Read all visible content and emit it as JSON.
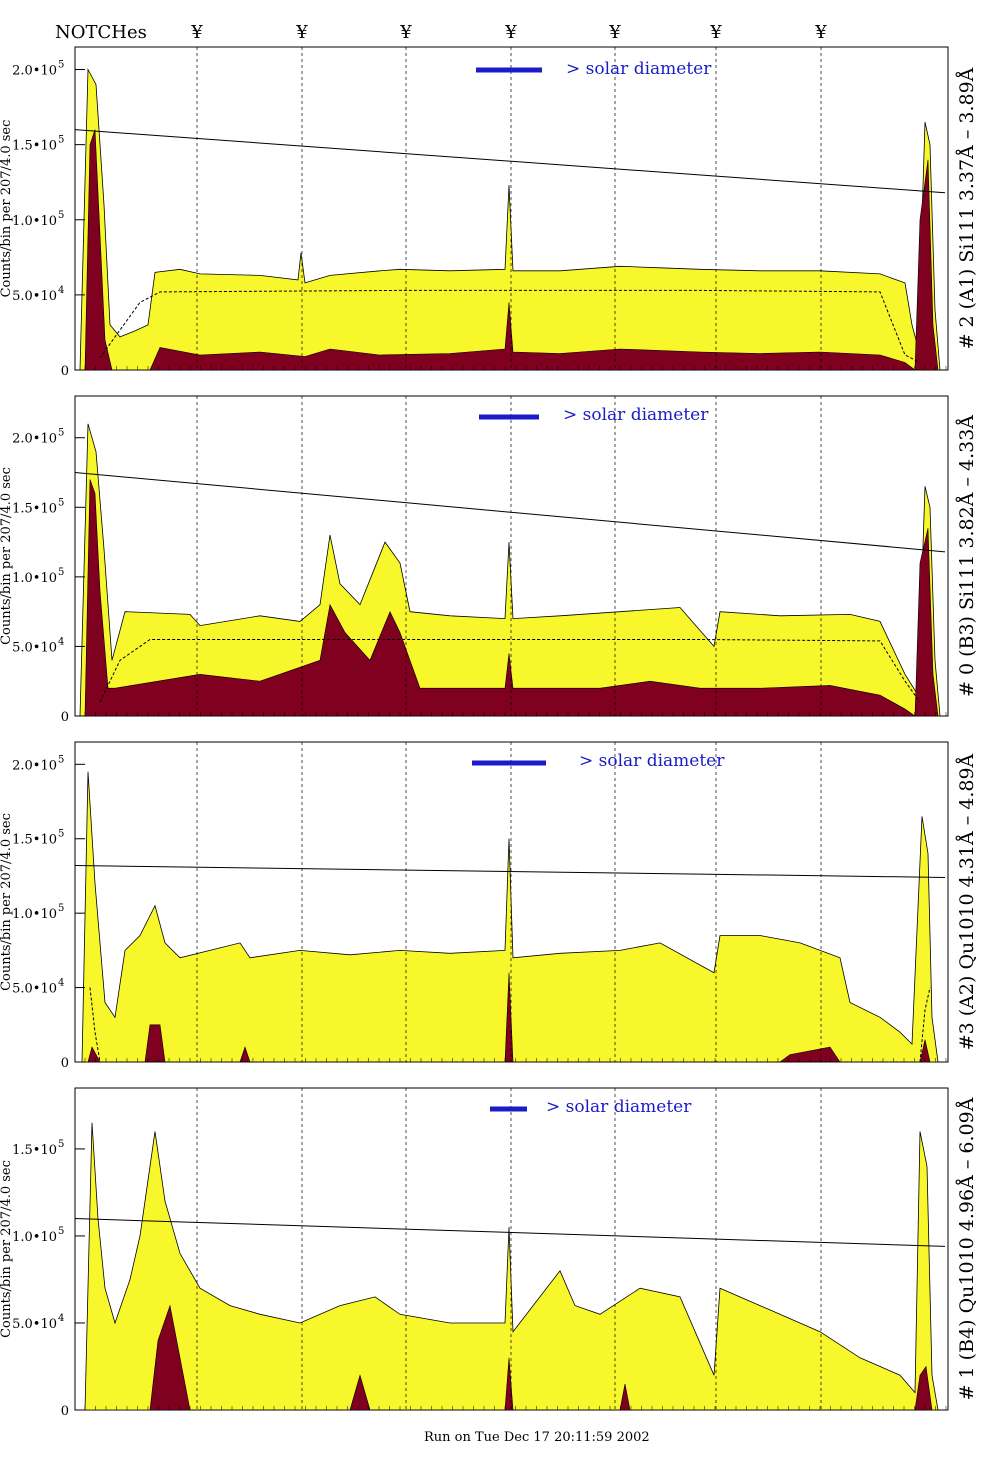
{
  "header": {
    "notches_label": "NOTCHes",
    "notch_symbol": "¥",
    "notch_positions": [
      197,
      302,
      406,
      511,
      615,
      716,
      821
    ]
  },
  "footer": {
    "run_text": "Run on Tue Dec 17 20:11:59 2002"
  },
  "colors": {
    "yellow_fill": "#f7f72c",
    "maroon_fill": "#800020",
    "solar_bar": "#1b1bc8",
    "axis": "#000000"
  },
  "chart_data": [
    {
      "type": "area",
      "side_label": "# 2 (A1) Si111  3.37Å – 3.89Å",
      "ylabel": "Counts/bin per  207/4.0 sec",
      "solar_label": "> solar diameter",
      "ylim": [
        0,
        215000
      ],
      "x_range": [
        75,
        948
      ],
      "y_ticks": [
        {
          "value": 0,
          "label": "0"
        },
        {
          "value": 50000,
          "label": "5.0•10",
          "exp": "4"
        },
        {
          "value": 100000,
          "label": "1.0•10",
          "exp": "5"
        },
        {
          "value": 150000,
          "label": "1.5•10",
          "exp": "5"
        },
        {
          "value": 200000,
          "label": "2.0•10",
          "exp": "5"
        }
      ],
      "trend_line": [
        [
          75,
          160000
        ],
        [
          945,
          118000
        ]
      ],
      "yellow_series": [
        [
          80,
          0
        ],
        [
          88,
          200000
        ],
        [
          96,
          190000
        ],
        [
          104,
          110000
        ],
        [
          110,
          30000
        ],
        [
          120,
          22000
        ],
        [
          135,
          26000
        ],
        [
          148,
          30000
        ],
        [
          155,
          65000
        ],
        [
          180,
          67000
        ],
        [
          200,
          64000
        ],
        [
          260,
          63000
        ],
        [
          298,
          60000
        ],
        [
          301,
          78000
        ],
        [
          305,
          58000
        ],
        [
          330,
          63000
        ],
        [
          380,
          66000
        ],
        [
          400,
          67000
        ],
        [
          450,
          66000
        ],
        [
          505,
          67000
        ],
        [
          509,
          123000
        ],
        [
          513,
          66000
        ],
        [
          560,
          66000
        ],
        [
          620,
          69000
        ],
        [
          660,
          68000
        ],
        [
          700,
          67000
        ],
        [
          760,
          66000
        ],
        [
          820,
          66000
        ],
        [
          880,
          64000
        ],
        [
          905,
          58000
        ],
        [
          912,
          30000
        ],
        [
          918,
          15000
        ],
        [
          925,
          165000
        ],
        [
          930,
          150000
        ],
        [
          935,
          40000
        ],
        [
          940,
          0
        ]
      ],
      "maroon_series": [
        [
          85,
          0
        ],
        [
          90,
          150000
        ],
        [
          95,
          160000
        ],
        [
          100,
          90000
        ],
        [
          105,
          20000
        ],
        [
          112,
          0
        ],
        [
          150,
          0
        ],
        [
          160,
          15000
        ],
        [
          200,
          10000
        ],
        [
          260,
          12000
        ],
        [
          305,
          9000
        ],
        [
          330,
          14000
        ],
        [
          380,
          10000
        ],
        [
          450,
          11000
        ],
        [
          505,
          14000
        ],
        [
          509,
          45000
        ],
        [
          513,
          12000
        ],
        [
          560,
          11000
        ],
        [
          620,
          14000
        ],
        [
          700,
          12000
        ],
        [
          760,
          11000
        ],
        [
          820,
          12000
        ],
        [
          880,
          10000
        ],
        [
          905,
          5000
        ],
        [
          915,
          0
        ],
        [
          920,
          100000
        ],
        [
          928,
          140000
        ],
        [
          933,
          30000
        ],
        [
          938,
          0
        ]
      ],
      "dashed_series": [
        [
          100,
          8000
        ],
        [
          115,
          22000
        ],
        [
          140,
          45000
        ],
        [
          160,
          52000
        ],
        [
          400,
          53000
        ],
        [
          700,
          53000
        ],
        [
          880,
          52000
        ],
        [
          905,
          10000
        ],
        [
          920,
          5000
        ]
      ]
    },
    {
      "type": "area",
      "side_label": "# 0 (B3) Si111  3.82Å – 4.33Å",
      "ylabel": "Counts/bin per  207/4.0 sec",
      "solar_label": "> solar diameter",
      "ylim": [
        0,
        230000
      ],
      "x_range": [
        75,
        948
      ],
      "y_ticks": [
        {
          "value": 0,
          "label": "0"
        },
        {
          "value": 50000,
          "label": "5.0•10",
          "exp": "4"
        },
        {
          "value": 100000,
          "label": "1.0•10",
          "exp": "5"
        },
        {
          "value": 150000,
          "label": "1.5•10",
          "exp": "5"
        },
        {
          "value": 200000,
          "label": "2.0•10",
          "exp": "5"
        }
      ],
      "trend_line": [
        [
          75,
          175000
        ],
        [
          945,
          118000
        ]
      ],
      "yellow_series": [
        [
          80,
          0
        ],
        [
          88,
          210000
        ],
        [
          96,
          190000
        ],
        [
          104,
          120000
        ],
        [
          112,
          40000
        ],
        [
          125,
          75000
        ],
        [
          190,
          73000
        ],
        [
          200,
          65000
        ],
        [
          260,
          72000
        ],
        [
          300,
          68000
        ],
        [
          320,
          80000
        ],
        [
          330,
          130000
        ],
        [
          340,
          95000
        ],
        [
          360,
          80000
        ],
        [
          385,
          125000
        ],
        [
          400,
          110000
        ],
        [
          410,
          75000
        ],
        [
          450,
          72000
        ],
        [
          505,
          70000
        ],
        [
          509,
          125000
        ],
        [
          513,
          70000
        ],
        [
          560,
          72000
        ],
        [
          620,
          75000
        ],
        [
          680,
          78000
        ],
        [
          714,
          50000
        ],
        [
          720,
          75000
        ],
        [
          780,
          72000
        ],
        [
          850,
          73000
        ],
        [
          880,
          68000
        ],
        [
          905,
          30000
        ],
        [
          918,
          15000
        ],
        [
          925,
          165000
        ],
        [
          930,
          150000
        ],
        [
          935,
          40000
        ],
        [
          940,
          0
        ]
      ],
      "maroon_series": [
        [
          85,
          0
        ],
        [
          90,
          170000
        ],
        [
          95,
          160000
        ],
        [
          100,
          90000
        ],
        [
          108,
          20000
        ],
        [
          115,
          20000
        ],
        [
          200,
          30000
        ],
        [
          260,
          25000
        ],
        [
          320,
          40000
        ],
        [
          330,
          80000
        ],
        [
          345,
          60000
        ],
        [
          370,
          40000
        ],
        [
          390,
          75000
        ],
        [
          400,
          60000
        ],
        [
          420,
          20000
        ],
        [
          505,
          20000
        ],
        [
          509,
          45000
        ],
        [
          513,
          20000
        ],
        [
          600,
          20000
        ],
        [
          650,
          25000
        ],
        [
          700,
          20000
        ],
        [
          760,
          20000
        ],
        [
          830,
          22000
        ],
        [
          880,
          15000
        ],
        [
          905,
          5000
        ],
        [
          915,
          0
        ],
        [
          920,
          110000
        ],
        [
          928,
          135000
        ],
        [
          933,
          30000
        ],
        [
          938,
          0
        ]
      ],
      "dashed_series": [
        [
          100,
          10000
        ],
        [
          120,
          40000
        ],
        [
          150,
          55000
        ],
        [
          400,
          55000
        ],
        [
          700,
          55000
        ],
        [
          880,
          54000
        ],
        [
          905,
          25000
        ],
        [
          920,
          10000
        ]
      ]
    },
    {
      "type": "area",
      "side_label": "#3 (A2) Qu1010  4.31Å – 4.89Å",
      "ylabel": "Counts/bin per  207/4.0 sec",
      "solar_label": "> solar diameter",
      "ylim": [
        0,
        215000
      ],
      "x_range": [
        75,
        948
      ],
      "y_ticks": [
        {
          "value": 0,
          "label": "0"
        },
        {
          "value": 50000,
          "label": "5.0•10",
          "exp": "4"
        },
        {
          "value": 100000,
          "label": "1.0•10",
          "exp": "5"
        },
        {
          "value": 150000,
          "label": "1.5•10",
          "exp": "5"
        },
        {
          "value": 200000,
          "label": "2.0•10",
          "exp": "5"
        }
      ],
      "trend_line": [
        [
          75,
          132000
        ],
        [
          945,
          124000
        ]
      ],
      "yellow_series": [
        [
          82,
          0
        ],
        [
          88,
          195000
        ],
        [
          95,
          120000
        ],
        [
          105,
          40000
        ],
        [
          115,
          30000
        ],
        [
          125,
          75000
        ],
        [
          140,
          85000
        ],
        [
          155,
          105000
        ],
        [
          165,
          80000
        ],
        [
          180,
          70000
        ],
        [
          240,
          80000
        ],
        [
          250,
          70000
        ],
        [
          300,
          75000
        ],
        [
          350,
          72000
        ],
        [
          400,
          75000
        ],
        [
          450,
          73000
        ],
        [
          505,
          75000
        ],
        [
          509,
          150000
        ],
        [
          513,
          70000
        ],
        [
          560,
          73000
        ],
        [
          620,
          75000
        ],
        [
          660,
          80000
        ],
        [
          714,
          60000
        ],
        [
          720,
          85000
        ],
        [
          760,
          85000
        ],
        [
          800,
          80000
        ],
        [
          840,
          70000
        ],
        [
          850,
          40000
        ],
        [
          880,
          30000
        ],
        [
          900,
          20000
        ],
        [
          912,
          12000
        ],
        [
          922,
          165000
        ],
        [
          928,
          140000
        ],
        [
          932,
          30000
        ],
        [
          938,
          0
        ]
      ],
      "maroon_series": [
        [
          88,
          0
        ],
        [
          92,
          10000
        ],
        [
          100,
          0
        ],
        [
          145,
          0
        ],
        [
          150,
          25000
        ],
        [
          160,
          25000
        ],
        [
          165,
          0
        ],
        [
          240,
          0
        ],
        [
          245,
          10000
        ],
        [
          250,
          0
        ],
        [
          505,
          0
        ],
        [
          509,
          60000
        ],
        [
          513,
          0
        ],
        [
          780,
          0
        ],
        [
          790,
          5000
        ],
        [
          830,
          10000
        ],
        [
          840,
          0
        ],
        [
          920,
          0
        ],
        [
          925,
          15000
        ],
        [
          930,
          0
        ]
      ],
      "dashed_series": [
        [
          90,
          50000
        ],
        [
          95,
          20000
        ],
        [
          100,
          0
        ],
        [
          920,
          0
        ],
        [
          925,
          35000
        ],
        [
          930,
          50000
        ]
      ]
    },
    {
      "type": "area",
      "side_label": "# 1 (B4) Qu1010 4.96Å – 6.09Å",
      "ylabel": "Counts/bin per  207/4.0 sec",
      "solar_label": "> solar diameter",
      "ylim": [
        0,
        185000
      ],
      "x_range": [
        75,
        948
      ],
      "y_ticks": [
        {
          "value": 0,
          "label": "0"
        },
        {
          "value": 50000,
          "label": "5.0•10",
          "exp": "4"
        },
        {
          "value": 100000,
          "label": "1.0•10",
          "exp": "5"
        },
        {
          "value": 150000,
          "label": "1.5•10",
          "exp": "5"
        }
      ],
      "trend_line": [
        [
          75,
          110000
        ],
        [
          945,
          94000
        ]
      ],
      "yellow_series": [
        [
          85,
          0
        ],
        [
          92,
          165000
        ],
        [
          98,
          110000
        ],
        [
          105,
          70000
        ],
        [
          115,
          50000
        ],
        [
          130,
          75000
        ],
        [
          140,
          100000
        ],
        [
          155,
          160000
        ],
        [
          165,
          120000
        ],
        [
          180,
          90000
        ],
        [
          200,
          70000
        ],
        [
          230,
          60000
        ],
        [
          260,
          55000
        ],
        [
          300,
          50000
        ],
        [
          340,
          60000
        ],
        [
          375,
          65000
        ],
        [
          400,
          55000
        ],
        [
          450,
          50000
        ],
        [
          505,
          50000
        ],
        [
          509,
          105000
        ],
        [
          513,
          45000
        ],
        [
          560,
          80000
        ],
        [
          575,
          60000
        ],
        [
          600,
          55000
        ],
        [
          640,
          70000
        ],
        [
          680,
          65000
        ],
        [
          714,
          20000
        ],
        [
          720,
          70000
        ],
        [
          760,
          60000
        ],
        [
          820,
          45000
        ],
        [
          860,
          30000
        ],
        [
          900,
          20000
        ],
        [
          915,
          10000
        ],
        [
          920,
          160000
        ],
        [
          927,
          140000
        ],
        [
          932,
          20000
        ],
        [
          938,
          0
        ]
      ],
      "maroon_series": [
        [
          150,
          0
        ],
        [
          158,
          40000
        ],
        [
          170,
          60000
        ],
        [
          180,
          30000
        ],
        [
          190,
          0
        ],
        [
          350,
          0
        ],
        [
          360,
          20000
        ],
        [
          370,
          0
        ],
        [
          505,
          0
        ],
        [
          509,
          30000
        ],
        [
          513,
          0
        ],
        [
          620,
          0
        ],
        [
          625,
          15000
        ],
        [
          630,
          0
        ],
        [
          915,
          0
        ],
        [
          920,
          20000
        ],
        [
          926,
          25000
        ],
        [
          932,
          0
        ]
      ],
      "dashed_series": []
    }
  ]
}
